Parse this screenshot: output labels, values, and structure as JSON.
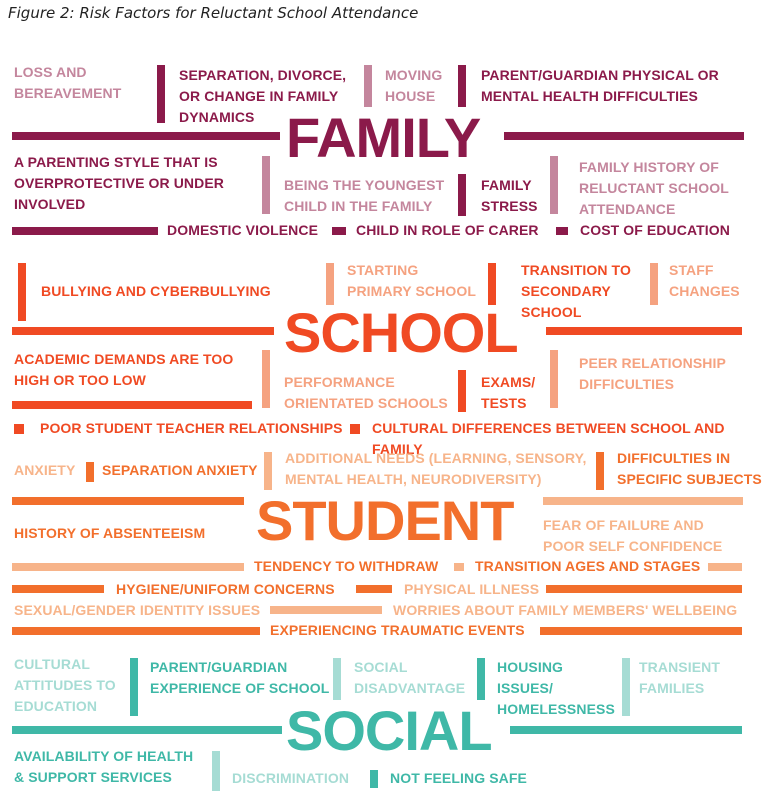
{
  "figure_title": "Figure 2: Risk Factors for Reluctant School Attendance",
  "colors": {
    "family": "#8b1a4a",
    "family_light": "#c4869d",
    "school": "#f04a23",
    "school_light": "#f5a280",
    "student": "#f26f2c",
    "student_light": "#f7b48a",
    "social": "#3fb8a7",
    "social_light": "#a6dcd4"
  },
  "family": {
    "heading": "FAMILY",
    "items": [
      "LOSS AND\nBEREAVEMENT",
      "SEPARATION, DIVORCE,\nOR CHANGE IN FAMILY\nDYNAMICS",
      "MOVING\nHOUSE",
      "PARENT/GUARDIAN PHYSICAL OR\nMENTAL HEALTH DIFFICULTIES",
      "A PARENTING STYLE THAT IS\nOVERPROTECTIVE OR UNDER\nINVOLVED",
      "BEING THE YOUNGEST\nCHILD IN THE FAMILY",
      "FAMILY\nSTRESS",
      "FAMILY HISTORY OF\nRELUCTANT SCHOOL\nATTENDANCE",
      "DOMESTIC VIOLENCE",
      "CHILD IN ROLE OF CARER",
      "COST OF EDUCATION"
    ]
  },
  "school": {
    "heading": "SCHOOL",
    "items": [
      "BULLYING  AND CYBERBULLYING",
      "STARTING\nPRIMARY SCHOOL",
      "TRANSITION TO\nSECONDARY\nSCHOOL",
      "STAFF\nCHANGES",
      "ACADEMIC DEMANDS ARE TOO\nHIGH OR TOO LOW",
      "PERFORMANCE\nORIENTATED SCHOOLS",
      "EXAMS/\nTESTS",
      "PEER RELATIONSHIP\nDIFFICULTIES",
      "POOR STUDENT TEACHER RELATIONSHIPS",
      "CULTURAL DIFFERENCES BETWEEN SCHOOL AND FAMILY"
    ]
  },
  "student": {
    "heading": "STUDENT",
    "items": [
      "ANXIETY",
      "SEPARATION ANXIETY",
      "ADDITIONAL NEEDS (LEARNING, SENSORY,\nMENTAL HEALTH, NEURODIVERSITY)",
      "DIFFICULTIES IN\nSPECIFIC SUBJECTS",
      "HISTORY OF ABSENTEEISM",
      "FEAR OF FAILURE AND\nPOOR SELF CONFIDENCE",
      "TENDENCY TO WITHDRAW",
      "TRANSITION AGES AND STAGES",
      "HYGIENE/UNIFORM CONCERNS",
      "PHYSICAL ILLNESS",
      "SEXUAL/GENDER IDENTITY ISSUES",
      "WORRIES ABOUT FAMILY MEMBERS' WELLBEING",
      "EXPERIENCING TRAUMATIC EVENTS"
    ]
  },
  "social": {
    "heading": "SOCIAL",
    "items": [
      "CULTURAL\nATTITUDES TO\nEDUCATION",
      "PARENT/GUARDIAN\nEXPERIENCE OF SCHOOL",
      "SOCIAL\nDISADVANTAGE",
      "HOUSING\nISSUES/\nHOMELESSNESS",
      "TRANSIENT\nFAMILIES",
      "AVAILABILITY OF HEALTH\n& SUPPORT SERVICES",
      "DISCRIMINATION",
      "NOT FEELING SAFE"
    ]
  }
}
